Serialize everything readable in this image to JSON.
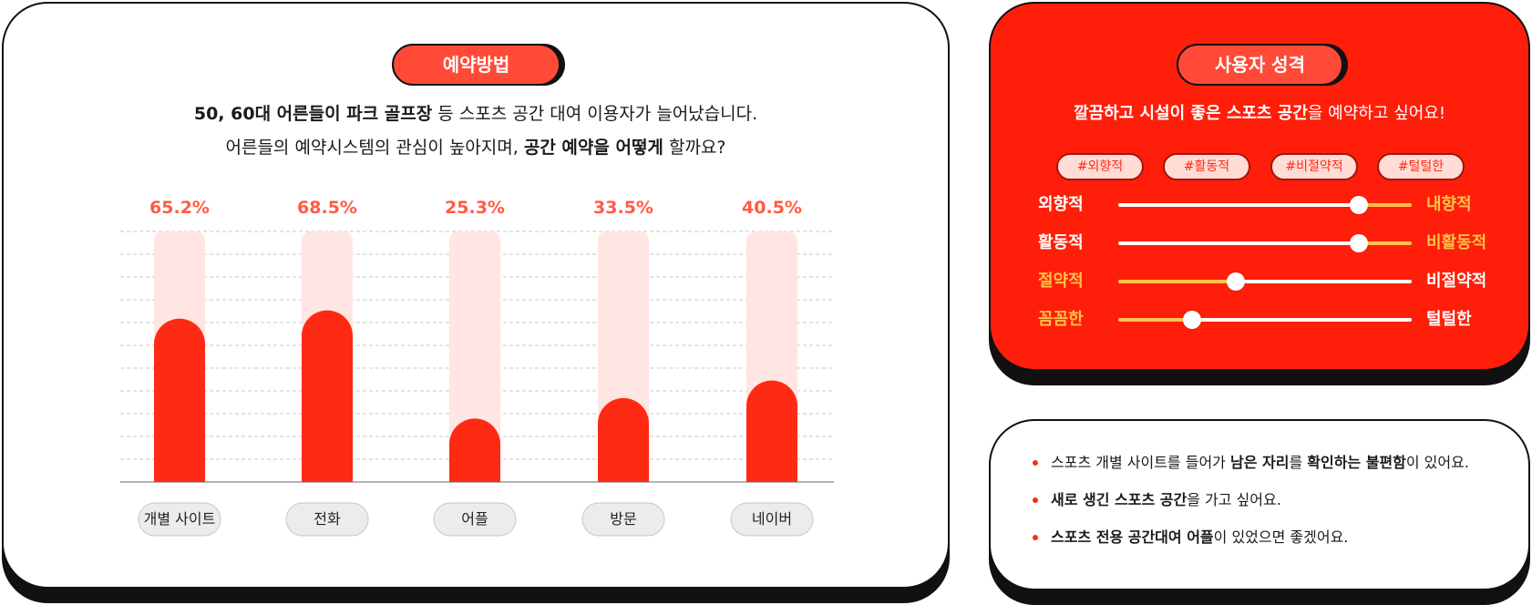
{
  "reservation": {
    "title": "예약방법",
    "intro_line1": {
      "b1": "50, 60대 어른들이 파크 골프장",
      "t1": " 등 스포츠 공간 대여 이용자가 늘어났습니다."
    },
    "intro_line2": {
      "t1": "어른들의 예약시스템의 관심이 높아지며, ",
      "b1": "공간 예약을 어떻게",
      "t2": " 할까요?"
    }
  },
  "chart_data": {
    "type": "bar",
    "categories": [
      "개별 사이트",
      "전화",
      "어플",
      "방문",
      "네이버"
    ],
    "values": [
      65.2,
      68.5,
      25.3,
      33.5,
      40.5
    ],
    "value_labels": [
      "65.2%",
      "68.5%",
      "25.3%",
      "33.5%",
      "40.5%"
    ],
    "ylim": [
      0,
      100
    ],
    "grid": true,
    "colors": {
      "bar": "#ff2a14",
      "track": "#ffe6e3",
      "label": "#ff5b45"
    }
  },
  "persona": {
    "title": "사용자 성격",
    "subtitle": {
      "t1": "깔끔하고 시설이 좋은 ",
      "b1": "스포츠 공간",
      "t2": "을 예약하고 싶어요!"
    },
    "tags": [
      "#외향적",
      "#활동적",
      "#비절약적",
      "#털털한"
    ],
    "sliders": [
      {
        "left": "외향적",
        "right": "내향적",
        "value": 0.82,
        "strong": "right"
      },
      {
        "left": "활동적",
        "right": "비활동적",
        "value": 0.82,
        "strong": "right"
      },
      {
        "left": "절약적",
        "right": "비절약적",
        "value": 0.4,
        "strong": "left"
      },
      {
        "left": "꼼꼼한",
        "right": "털털한",
        "value": 0.25,
        "strong": "left"
      }
    ],
    "colors": {
      "background": "#ff1e0a",
      "accent": "#ffc24a"
    }
  },
  "pain_points": [
    {
      "t1": "스포츠 개별 사이트를 들어가 ",
      "b1": "남은 자리",
      "t2": "를 ",
      "b2": "확인하는 불편함",
      "t3": "이 있어요."
    },
    {
      "t1": "",
      "b1": "새로 생긴 스포츠 공간",
      "t2": "을 가고 싶어요.",
      "b2": "",
      "t3": ""
    },
    {
      "t1": "",
      "b1": "스포츠 전용 공간대여 어플",
      "t2": "이 있었으면 좋겠어요.",
      "b2": "",
      "t3": ""
    }
  ]
}
